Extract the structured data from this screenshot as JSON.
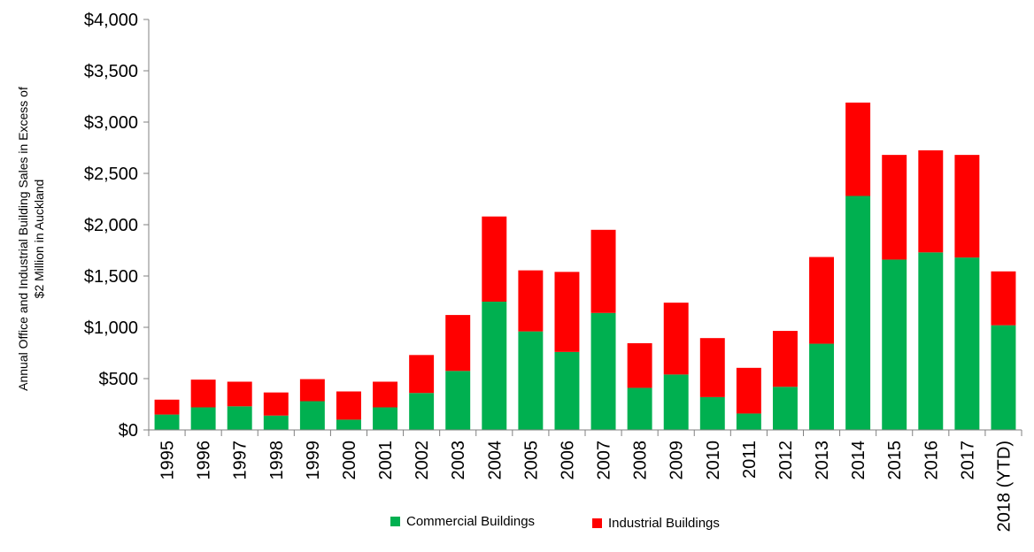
{
  "chart_data": {
    "type": "bar",
    "stacked": true,
    "categories": [
      "1995",
      "1996",
      "1997",
      "1998",
      "1999",
      "2000",
      "2001",
      "2002",
      "2003",
      "2004",
      "2005",
      "2006",
      "2007",
      "2008",
      "2009",
      "2010",
      "2011",
      "2012",
      "2013",
      "2014",
      "2015",
      "2016",
      "2017",
      "2018 (YTD)"
    ],
    "series": [
      {
        "name": "Commercial Buildings",
        "color": "#00b050",
        "values": [
          150,
          220,
          230,
          140,
          280,
          100,
          220,
          360,
          575,
          1250,
          960,
          760,
          1140,
          410,
          540,
          320,
          160,
          420,
          840,
          2280,
          1660,
          1730,
          1680,
          1020
        ]
      },
      {
        "name": "Industrial Buildings",
        "color": "#ff0000",
        "values": [
          145,
          270,
          240,
          225,
          215,
          275,
          250,
          370,
          545,
          830,
          595,
          780,
          810,
          435,
          700,
          575,
          445,
          545,
          845,
          910,
          1020,
          995,
          1000,
          525
        ]
      }
    ],
    "ylabel_lines": [
      "Annual Office and Industrial Building Sales in Excess of",
      "$2 Million in Auckland"
    ],
    "ylim": [
      0,
      4000
    ],
    "yticks": [
      0,
      500,
      1000,
      1500,
      2000,
      2500,
      3000,
      3500,
      4000
    ],
    "ytick_labels": [
      "$0",
      "$500",
      "$1,000",
      "$1,500",
      "$2,000",
      "$2,500",
      "$3,000",
      "$3,500",
      "$4,000"
    ],
    "legend_position": "bottom",
    "grid": false
  }
}
